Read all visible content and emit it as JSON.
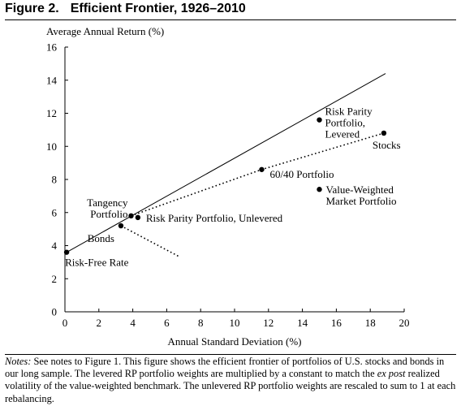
{
  "figure": {
    "number": "Figure 2.",
    "title": "Efficient Frontier, 1926–2010"
  },
  "notes": {
    "label": "Notes:",
    "part1": " See notes to Figure 1. This figure shows the efficient frontier of portfolios of U.S. stocks and bonds in our long sample. The levered RP portfolio weights are multiplied by a constant to match the ",
    "emphasis": "ex post",
    "part2": " realized volatility of the value-weighted benchmark. The unlevered RP portfolio weights are rescaled to sum to 1 at each rebalancing."
  },
  "chart_data": {
    "type": "scatter",
    "ylabel": "Average Annual Return (%)",
    "xlabel": "Annual Standard Deviation (%)",
    "xlim": [
      0,
      20
    ],
    "ylim": [
      0,
      16
    ],
    "x_ticks": [
      0,
      2,
      4,
      6,
      8,
      10,
      12,
      14,
      16,
      18,
      20
    ],
    "y_ticks": [
      0,
      2,
      4,
      6,
      8,
      10,
      12,
      14,
      16
    ],
    "points": [
      {
        "label": "Risk-Free Rate",
        "x": 0.1,
        "y": 3.6
      },
      {
        "label": "Bonds",
        "x": 3.3,
        "y": 5.2
      },
      {
        "label": "Tangency Portfolio",
        "x": 3.9,
        "y": 5.8
      },
      {
        "label": "Risk Parity Portfolio, Unlevered",
        "x": 4.3,
        "y": 5.7
      },
      {
        "label": "60/40 Portfolio",
        "x": 11.6,
        "y": 8.6
      },
      {
        "label": "Value-Weighted Market Portfolio",
        "x": 15.0,
        "y": 7.4
      },
      {
        "label": "Risk Parity Portfolio, Levered",
        "x": 15.0,
        "y": 11.6
      },
      {
        "label": "Stocks",
        "x": 18.8,
        "y": 10.8
      }
    ],
    "lines": [
      {
        "style": "solid",
        "x": [
          0.1,
          18.9
        ],
        "y": [
          3.6,
          14.4
        ]
      },
      {
        "style": "dotted",
        "x": [
          3.9,
          11.6,
          18.8
        ],
        "y": [
          5.8,
          8.6,
          10.8
        ]
      },
      {
        "style": "dotted",
        "x": [
          3.3,
          6.8
        ],
        "y": [
          5.2,
          3.3
        ]
      }
    ]
  }
}
